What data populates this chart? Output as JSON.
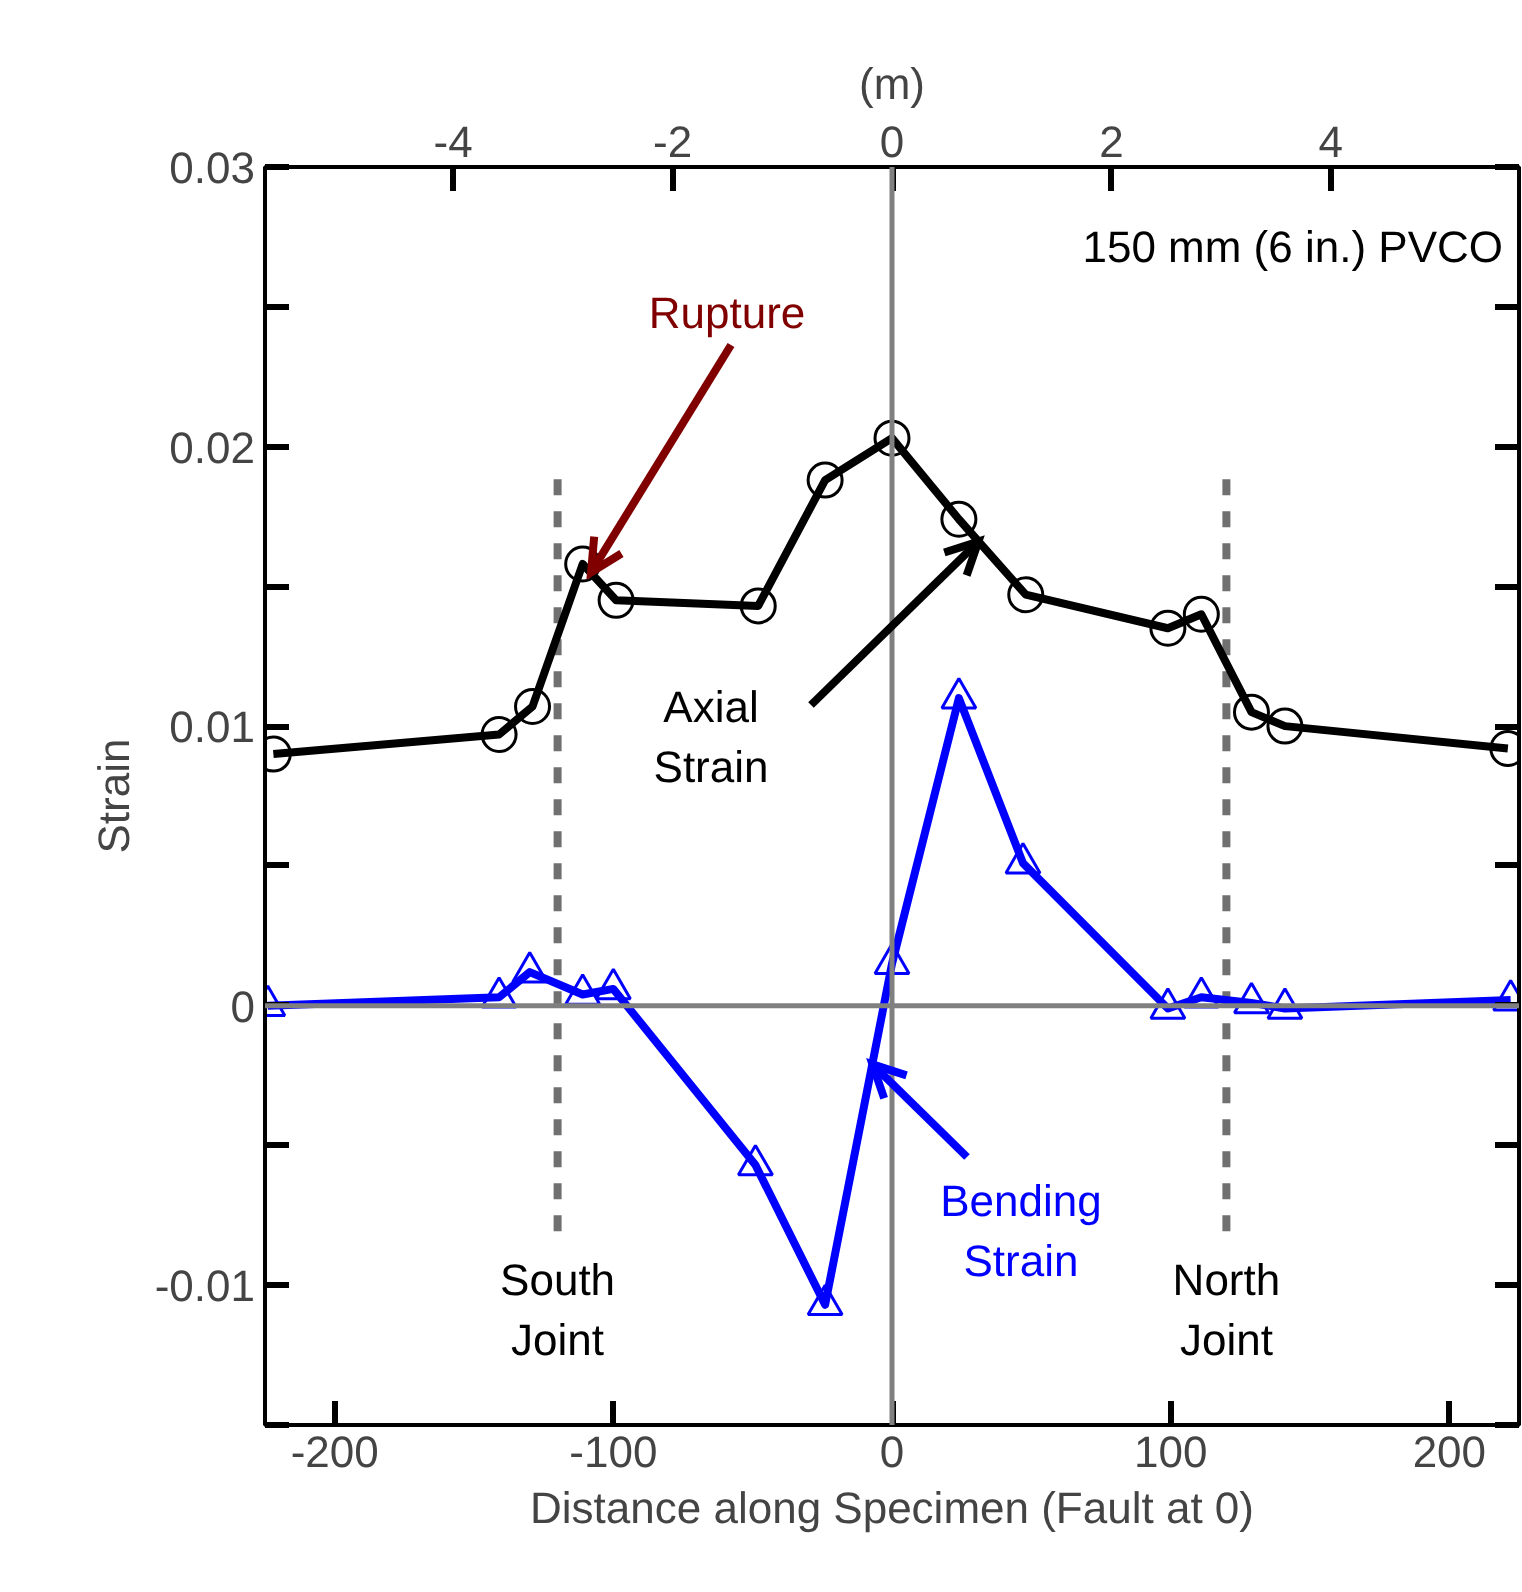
{
  "chart_data": {
    "type": "line",
    "xlabel": "Distance along Specimen (Fault at 0)",
    "ylabel": "Strain",
    "x2label": "(m)",
    "series": [
      {
        "name": null,
        "color": "#000000",
        "marker": "circle",
        "x": [
          -222,
          -141,
          -129,
          -111,
          -99,
          -48,
          -24,
          0,
          24,
          48,
          99,
          111,
          129,
          141,
          221
        ],
        "values": [
          0.009,
          0.0097,
          0.0107,
          0.0158,
          0.0145,
          0.0143,
          0.0188,
          0.0203,
          0.0174,
          0.0147,
          0.0135,
          0.014,
          0.0105,
          0.01,
          0.0092
        ]
      },
      {
        "name": null,
        "color": "#0000ff",
        "marker": "triangle",
        "x": [
          -224,
          -141,
          -130,
          -111,
          -100,
          -49,
          -24,
          0,
          24,
          47,
          99,
          111,
          129,
          141,
          222
        ],
        "values": [
          0.0,
          0.0003,
          0.0012,
          0.0004,
          0.0006,
          -0.0057,
          -0.0107,
          0.0015,
          0.011,
          0.0051,
          -0.0001,
          0.0003,
          0.0001,
          -0.0001,
          0.0002
        ]
      }
    ],
    "xlim": [
      -225,
      225
    ],
    "xticks": [
      -200,
      -100,
      0,
      100,
      200
    ],
    "x2lim": [
      -5.715,
      5.715
    ],
    "x2ticks": [
      -4,
      -2,
      0,
      2,
      4
    ],
    "ylim": [
      -0.015,
      0.03
    ],
    "yticks": [
      {
        "value": -0.015,
        "label": null
      },
      -0.01,
      {
        "value": -0.005,
        "label": null
      },
      0,
      {
        "value": 0.005,
        "label": null
      },
      0.01,
      {
        "value": 0.015,
        "label": null
      },
      0.02,
      {
        "value": 0.025,
        "label": null
      },
      0.03
    ],
    "ref_lines": [
      {
        "axis": "x",
        "value": 0,
        "color": "#808080",
        "line_style": "solid"
      },
      {
        "axis": "y",
        "value": 0,
        "color": "#808080",
        "line_style": "solid"
      },
      {
        "axis": "x",
        "value": -120,
        "label": "South Joint",
        "color": "#707070",
        "line_style": "dashed"
      },
      {
        "axis": "x",
        "value": 120,
        "label": "North Joint",
        "color": "#707070",
        "line_style": "dashed"
      }
    ],
    "annotations": [
      "150 mm (6 in.) PVCO",
      {
        "text": "Rupture",
        "x": -108,
        "y": 0.0155
      },
      {
        "text": "Axial Strain",
        "x": 31,
        "y": 0.0166
      },
      {
        "text": "Bending Strain",
        "x": -7,
        "y": -0.0021
      }
    ],
    "grid": false,
    "legend": false,
    "line_style": "solid"
  }
}
